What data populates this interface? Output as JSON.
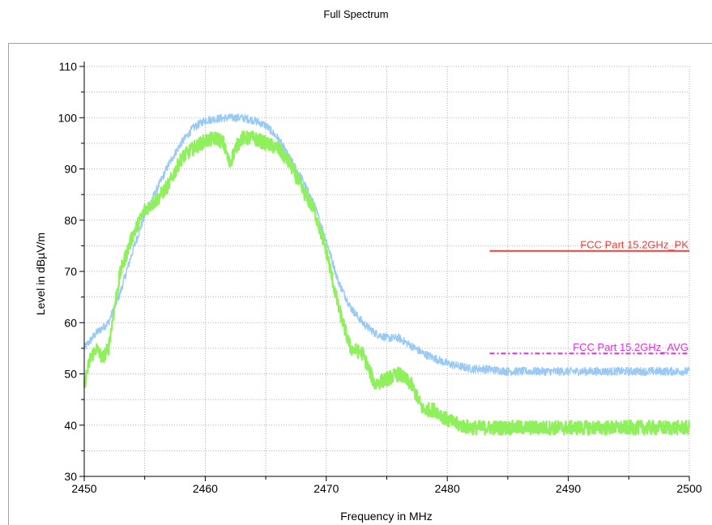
{
  "chart_data": {
    "type": "line",
    "title": "Full Spectrum",
    "xlabel": "Frequency in MHz",
    "ylabel": "Level in dBµV/m",
    "xlim": [
      2450,
      2500
    ],
    "ylim": [
      30,
      110
    ],
    "x_ticks": [
      2450,
      2460,
      2470,
      2480,
      2490,
      2500
    ],
    "y_ticks": [
      30,
      40,
      50,
      60,
      70,
      80,
      90,
      100,
      110
    ],
    "grid": true,
    "series": [
      {
        "name": "",
        "color": "#99c9f5",
        "noise": 0.8,
        "x": [
          2450,
          2451,
          2452,
          2453,
          2454,
          2455,
          2456,
          2457,
          2458,
          2459,
          2460,
          2461,
          2462,
          2463,
          2464,
          2465,
          2466,
          2467,
          2468,
          2469,
          2470,
          2471,
          2472,
          2473,
          2474,
          2475,
          2476,
          2477,
          2478,
          2479,
          2480,
          2481,
          2482,
          2483,
          2485,
          2490,
          2495,
          2500
        ],
        "values": [
          55,
          58,
          60,
          66,
          74,
          81,
          86,
          91,
          95,
          98,
          99.5,
          99.8,
          100,
          100,
          99.5,
          98.5,
          96,
          92,
          88,
          83,
          76,
          68,
          63,
          60,
          58,
          57,
          57,
          55.5,
          54,
          53,
          52,
          51.5,
          51,
          51,
          50.5,
          50.5,
          50.5,
          50.5
        ]
      },
      {
        "name": "",
        "color": "#8ef05a",
        "noise": 1.4,
        "x": [
          2450,
          2450.5,
          2451,
          2451.5,
          2452,
          2452.5,
          2453,
          2454,
          2455,
          2456,
          2457,
          2458,
          2459,
          2460,
          2461,
          2461.5,
          2462,
          2462.5,
          2463,
          2464,
          2465,
          2466,
          2467,
          2468,
          2469,
          2470,
          2471,
          2472,
          2473,
          2474,
          2475,
          2476,
          2477,
          2478,
          2479,
          2480,
          2481,
          2482,
          2483,
          2485,
          2490,
          2495,
          2500
        ],
        "values": [
          48,
          53,
          55,
          53,
          55,
          63,
          70,
          77,
          82,
          84,
          87,
          92,
          94,
          95.5,
          96,
          95,
          91,
          94,
          96,
          96,
          95,
          94,
          91,
          86,
          82,
          74,
          63,
          55,
          54,
          48,
          49,
          50,
          48,
          43,
          43,
          41,
          40,
          39.5,
          39.5,
          39.5,
          39.5,
          39.5,
          39.5
        ]
      }
    ],
    "limits": [
      {
        "label": "FCC Part 15.2GHz_PK",
        "value": 74,
        "x_start": 2483.5,
        "x_end": 2500,
        "color": "#e8423c",
        "style": "solid"
      },
      {
        "label": "FCC Part 15.2GHz_AVG",
        "value": 54,
        "x_start": 2483.5,
        "x_end": 2500,
        "color": "#e82fe0",
        "style": "dashdot"
      }
    ]
  }
}
